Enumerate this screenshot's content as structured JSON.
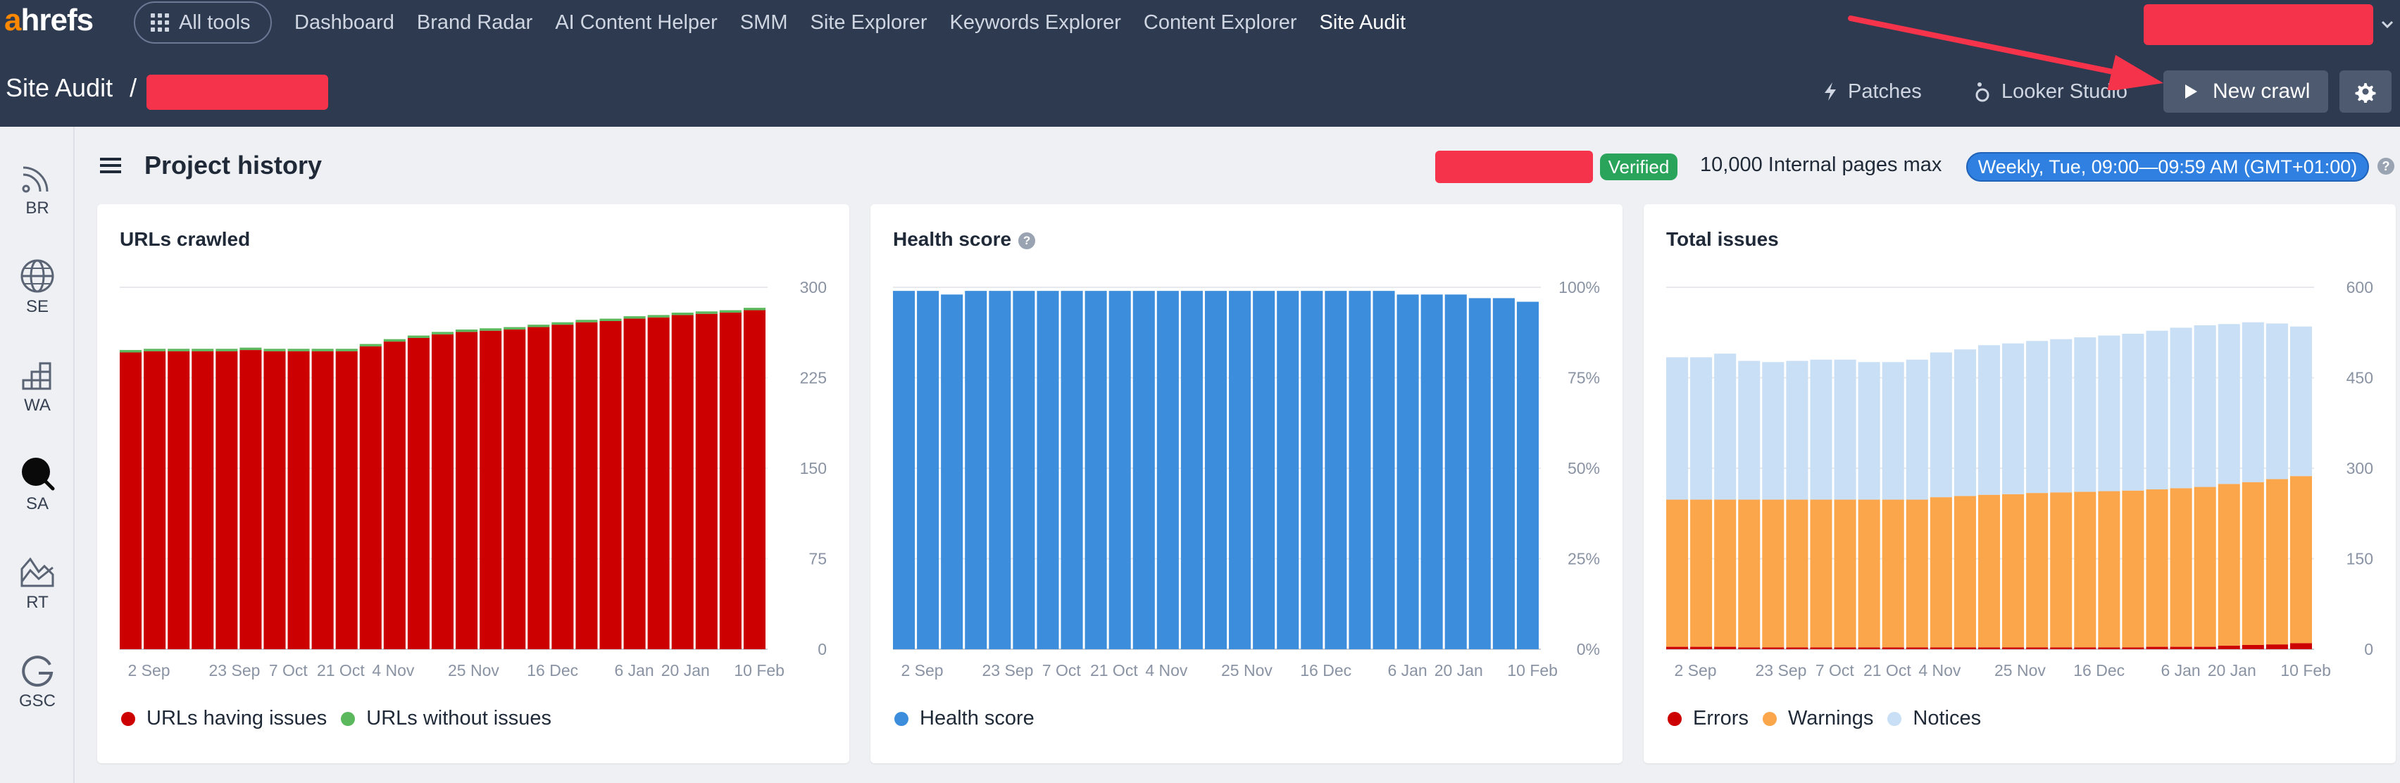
{
  "header": {
    "logo_first": "a",
    "logo_rest": "hrefs",
    "all_tools": "All tools",
    "nav": [
      "Dashboard",
      "Brand Radar",
      "AI Content Helper",
      "SMM",
      "Site Explorer",
      "Keywords Explorer",
      "Content Explorer",
      "Site Audit"
    ],
    "active_nav": "Site Audit",
    "breadcrumb_root": "Site Audit",
    "breadcrumb_sep": "/",
    "patches": "Patches",
    "looker": "Looker Studio",
    "new_crawl": "New crawl"
  },
  "sidebar": {
    "items": [
      {
        "label": "BR",
        "icon": "radar-icon"
      },
      {
        "label": "SE",
        "icon": "globe-icon"
      },
      {
        "label": "WA",
        "icon": "stairs-chart-icon"
      },
      {
        "label": "SA",
        "icon": "site-audit-icon"
      },
      {
        "label": "RT",
        "icon": "rank-tracker-icon"
      },
      {
        "label": "GSC",
        "icon": "google-icon"
      }
    ]
  },
  "toolbar": {
    "title": "Project history",
    "verified": "Verified",
    "pages_max": "10,000 Internal pages max",
    "schedule": "Weekly, Tue, 09:00—09:59 AM (GMT+01:00)"
  },
  "colors": {
    "header_bg": "#2d3a50",
    "red": "#cc0000",
    "green": "#5cb85c",
    "blue": "#3c8ddc",
    "orange": "#fba64b",
    "light_blue": "#c8dff5",
    "redaction": "#f5334a"
  },
  "chart_data": [
    {
      "type": "bar",
      "title": "URLs crawled",
      "x_ticks": [
        "2 Sep",
        "23 Sep",
        "7 Oct",
        "21 Oct",
        "4 Nov",
        "25 Nov",
        "16 Dec",
        "6 Jan",
        "20 Jan",
        "10 Feb"
      ],
      "y_ticks": [
        "300",
        "225",
        "150",
        "75",
        "0"
      ],
      "ylim": [
        0,
        300
      ],
      "stacked": true,
      "series": [
        {
          "name": "URLs having issues",
          "color": "#cc0000",
          "values": [
            246,
            247,
            247,
            247,
            247,
            248,
            247,
            247,
            247,
            247,
            251,
            255,
            258,
            261,
            263,
            264,
            265,
            267,
            269,
            271,
            272,
            274,
            275,
            277,
            278,
            279,
            281
          ]
        },
        {
          "name": "URLs without issues",
          "color": "#5cb85c",
          "values": [
            2,
            2,
            2,
            2,
            2,
            2,
            2,
            2,
            2,
            2,
            2,
            2,
            2,
            2,
            2,
            2,
            2,
            2,
            2,
            2,
            2,
            2,
            2,
            2,
            2,
            2,
            2
          ]
        }
      ],
      "legend": "bottom-left"
    },
    {
      "type": "bar",
      "title": "Health score",
      "x_ticks": [
        "2 Sep",
        "23 Sep",
        "7 Oct",
        "21 Oct",
        "4 Nov",
        "25 Nov",
        "16 Dec",
        "6 Jan",
        "20 Jan",
        "10 Feb"
      ],
      "y_ticks": [
        "100%",
        "75%",
        "50%",
        "25%",
        "0%"
      ],
      "ylim": [
        0,
        100
      ],
      "stacked": false,
      "series": [
        {
          "name": "Health score",
          "color": "#3c8ddc",
          "values": [
            99,
            99,
            98,
            99,
            99,
            99,
            99,
            99,
            99,
            99,
            99,
            99,
            99,
            99,
            99,
            99,
            99,
            99,
            99,
            99,
            99,
            98,
            98,
            98,
            97,
            97,
            96
          ]
        }
      ],
      "legend": "bottom-left"
    },
    {
      "type": "bar",
      "title": "Total issues",
      "x_ticks": [
        "2 Sep",
        "23 Sep",
        "7 Oct",
        "21 Oct",
        "4 Nov",
        "25 Nov",
        "16 Dec",
        "6 Jan",
        "20 Jan",
        "10 Feb"
      ],
      "y_ticks": [
        "600",
        "450",
        "300",
        "150",
        "0"
      ],
      "ylim": [
        0,
        600
      ],
      "stacked": true,
      "series": [
        {
          "name": "Errors",
          "color": "#cc0000",
          "values": [
            4,
            4,
            4,
            3,
            3,
            3,
            3,
            3,
            3,
            3,
            3,
            3,
            3,
            3,
            3,
            3,
            3,
            3,
            3,
            3,
            4,
            4,
            4,
            6,
            7,
            8,
            10
          ]
        },
        {
          "name": "Warnings",
          "color": "#fba64b",
          "values": [
            244,
            244,
            244,
            245,
            245,
            245,
            245,
            245,
            245,
            245,
            245,
            249,
            251,
            253,
            254,
            256,
            257,
            258,
            259,
            260,
            261,
            263,
            265,
            268,
            270,
            274,
            277
          ]
        },
        {
          "name": "Notices",
          "color": "#c8dff5",
          "values": [
            236,
            236,
            242,
            230,
            228,
            230,
            232,
            232,
            228,
            228,
            232,
            240,
            243,
            248,
            250,
            252,
            254,
            256,
            258,
            260,
            263,
            266,
            268,
            265,
            265,
            258,
            248
          ]
        }
      ],
      "legend": "bottom-left"
    }
  ]
}
